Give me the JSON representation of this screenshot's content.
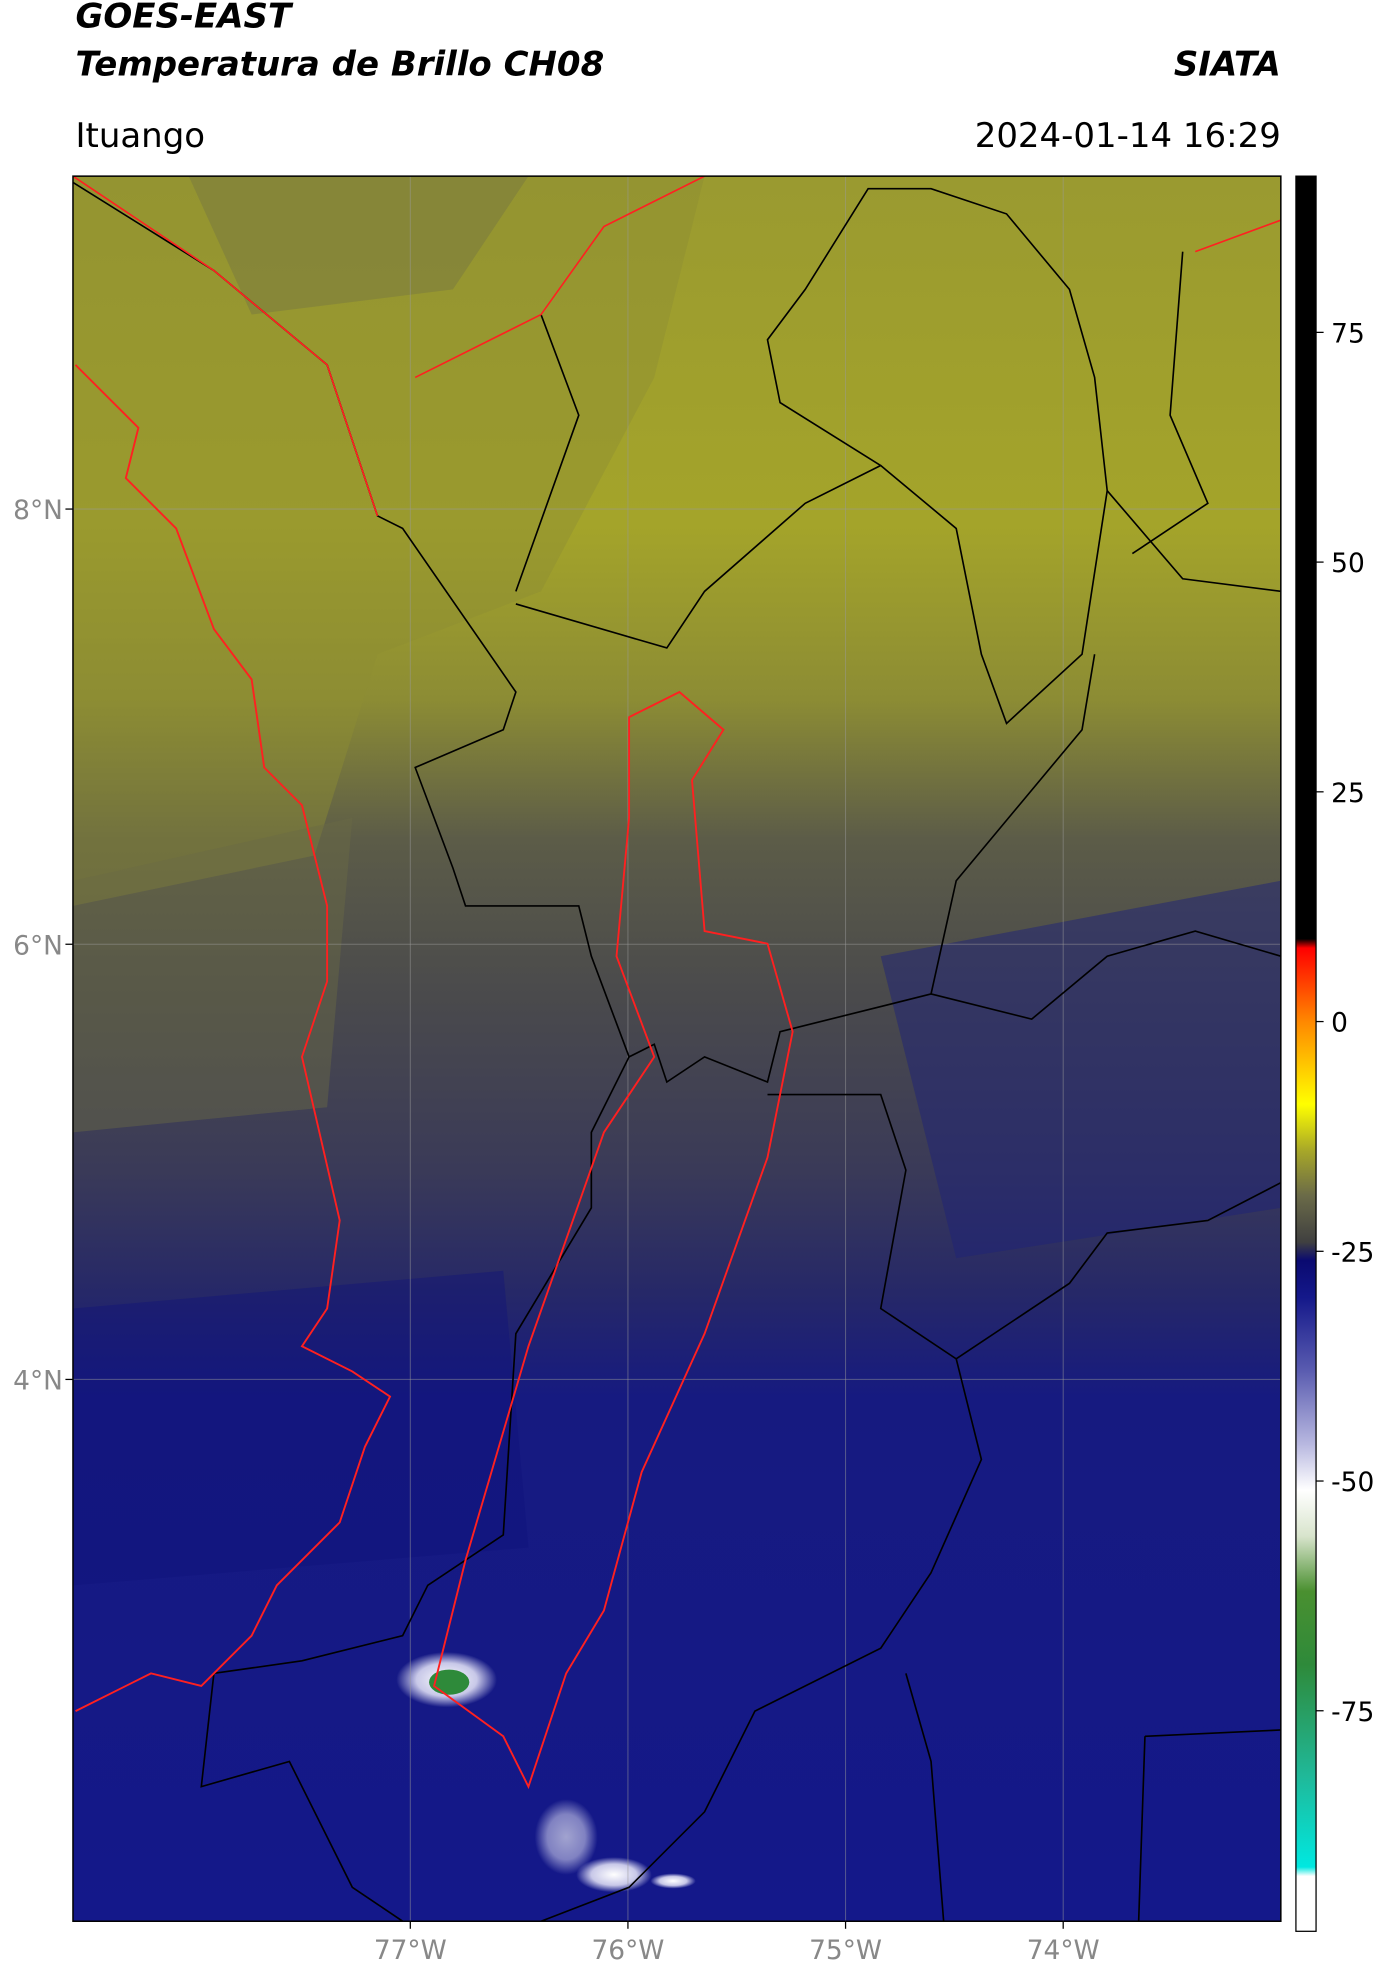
{
  "header": {
    "title_line1": "GOES-EAST",
    "title_line2": "Temperatura de Brillo CH08",
    "source": "SIATA",
    "location": "Ituango",
    "datetime": "2024-01-14 16:29"
  },
  "map": {
    "lon_range": [
      -78.55,
      -73.0
    ],
    "lat_range": [
      1.51,
      9.53
    ],
    "lon_ticks": [
      {
        "value": -77,
        "label": "77°W"
      },
      {
        "value": -76,
        "label": "76°W"
      },
      {
        "value": -75,
        "label": "75°W"
      },
      {
        "value": -74,
        "label": "74°W"
      }
    ],
    "lat_ticks": [
      {
        "value": 8,
        "label": "8°N"
      },
      {
        "value": 6,
        "label": "6°N"
      },
      {
        "value": 4,
        "label": "4°N"
      }
    ]
  },
  "colorbar": {
    "range": [
      -99,
      92
    ],
    "ticks": [
      75,
      50,
      25,
      0,
      -25,
      -50,
      -75
    ],
    "colormap": [
      {
        "value": -99,
        "color": "#ffffff"
      },
      {
        "value": -93,
        "color": "#ffffff"
      },
      {
        "value": -92,
        "color": "#00e8e0"
      },
      {
        "value": -82,
        "color": "#20b898"
      },
      {
        "value": -70,
        "color": "#2e8a3a"
      },
      {
        "value": -62,
        "color": "#4a9030"
      },
      {
        "value": -56,
        "color": "#d8e4cc"
      },
      {
        "value": -51,
        "color": "#ffffff"
      },
      {
        "value": -46,
        "color": "#b8b8e0"
      },
      {
        "value": -38,
        "color": "#5a5cb0"
      },
      {
        "value": -30,
        "color": "#14188a"
      },
      {
        "value": -26,
        "color": "#0a0a70"
      },
      {
        "value": -24,
        "color": "#404040"
      },
      {
        "value": -19,
        "color": "#6a6a48"
      },
      {
        "value": -14,
        "color": "#a8a828"
      },
      {
        "value": -9,
        "color": "#ffff00"
      },
      {
        "value": 0,
        "color": "#ff8800"
      },
      {
        "value": 8,
        "color": "#ff0000"
      },
      {
        "value": 9,
        "color": "#000000"
      },
      {
        "value": 92,
        "color": "#000000"
      }
    ]
  }
}
